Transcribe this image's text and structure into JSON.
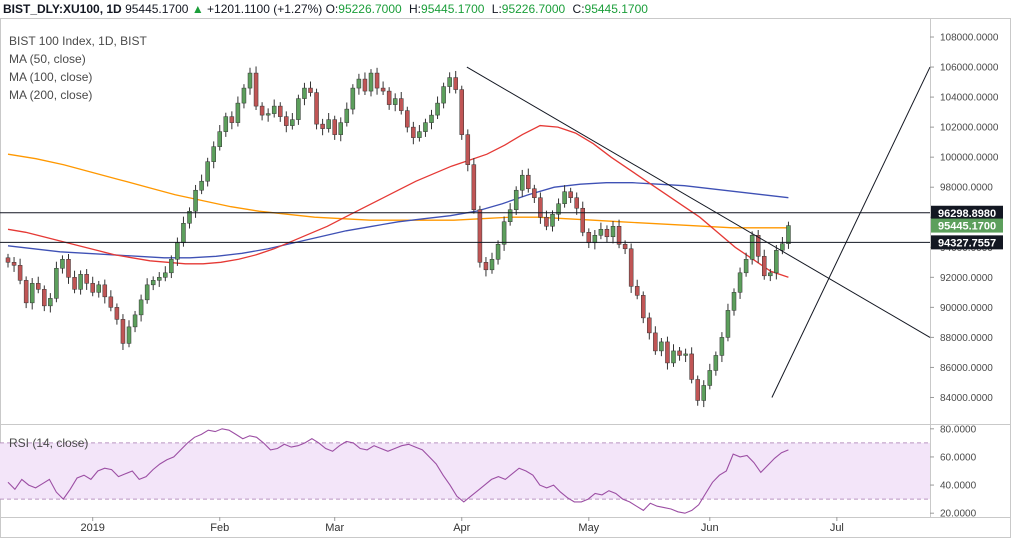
{
  "header": {
    "symbol": "BIST_DLY:XU100, 1D",
    "last": "95445.1700",
    "arrow": "▲",
    "change": "+1201.1100 (+1.27%)",
    "o_label": "O:",
    "o_value": "95226.7000",
    "h_label": "H:",
    "h_value": "95445.1700",
    "l_label": "L:",
    "l_value": "95226.7000",
    "c_label": "C:",
    "c_value": "95445.1700"
  },
  "legend": {
    "title": "BIST 100 Index, 1D, BIST",
    "ma50": "MA (50, close)",
    "ma100": "MA (100, close)",
    "ma200": "MA (200, close)",
    "rsi": "RSI (14, close)"
  },
  "colors": {
    "up": "#5c9f5c",
    "down": "#c05555",
    "ma50": "#e53935",
    "ma100": "#3f51b5",
    "ma200": "#ff9800",
    "rsi_line": "#9c4fa4",
    "rsi_band": "#f3e5f9",
    "hline": "#131722",
    "trend": "#131722"
  },
  "chart_data": [
    {
      "type": "candlestick",
      "x_labels": [
        "2019",
        "Feb",
        "Mar",
        "Apr",
        "May",
        "Jun",
        "Jul"
      ],
      "y_ticks": [
        84000,
        86000,
        88000,
        90000,
        92000,
        94000,
        96000,
        98000,
        100000,
        102000,
        104000,
        106000,
        108000
      ],
      "y_tick_labels": [
        "84000.0000",
        "86000.0000",
        "88000.0000",
        "90000.0000",
        "92000.0000",
        "94000.0000",
        "96000.0000",
        "98000.0000",
        "100000.0000",
        "102000.0000",
        "104000.0000",
        "106000.0000",
        "108000.0000"
      ],
      "ylim": [
        82500,
        109000
      ],
      "price_labels": [
        {
          "value": 96298.898,
          "text": "96298.8980",
          "style": "dark"
        },
        {
          "value": 95445.17,
          "text": "95445.1700",
          "style": "green"
        },
        {
          "value": 94327.7557,
          "text": "94327.7557",
          "style": "dark"
        }
      ],
      "horizontal_lines": [
        96298.898,
        94327.7557
      ],
      "closes": [
        93000,
        92800,
        91800,
        90300,
        91600,
        91200,
        90100,
        90600,
        92600,
        93200,
        92000,
        91200,
        92200,
        91600,
        91000,
        91500,
        90700,
        90000,
        89200,
        87600,
        88700,
        89500,
        90500,
        91500,
        91800,
        92000,
        92300,
        93200,
        94300,
        95600,
        96400,
        97800,
        98400,
        99700,
        100700,
        101700,
        102700,
        102300,
        103600,
        104600,
        105600,
        103400,
        102800,
        102900,
        103400,
        102700,
        102100,
        102500,
        103900,
        104600,
        104300,
        102200,
        101900,
        102500,
        101500,
        102300,
        103200,
        104600,
        105200,
        104400,
        105600,
        104600,
        104400,
        103500,
        103900,
        103100,
        102000,
        101300,
        101700,
        102300,
        102800,
        103600,
        104700,
        105300,
        104500,
        101500,
        99500,
        96500,
        93000,
        92500,
        93200,
        94200,
        95700,
        96500,
        97800,
        98800,
        97900,
        97300,
        96000,
        95400,
        96200,
        96900,
        97700,
        97300,
        96600,
        95000,
        94300,
        94800,
        95200,
        94700,
        95400,
        94200,
        93900,
        91400,
        90800,
        89300,
        88300,
        87100,
        87700,
        86300,
        87100,
        86800,
        86900,
        85200,
        83800,
        84800,
        85800,
        86800,
        88000,
        89800,
        91000,
        92300,
        93200,
        94800,
        93400,
        92100,
        92300,
        93800,
        94244,
        95445
      ],
      "ma50": [
        95200,
        95000,
        94700,
        94400,
        94100,
        93800,
        93500,
        93300,
        93100,
        93000,
        92900,
        92900,
        93000,
        93200,
        93500,
        93900,
        94400,
        94900,
        95400,
        96000,
        96600,
        97200,
        97800,
        98400,
        98900,
        99400,
        99800,
        100200,
        100800,
        101500,
        102100,
        102000,
        101600,
        100900,
        100000,
        99200,
        98400,
        97600,
        96800,
        96000,
        95000,
        94000,
        93200,
        92400,
        92000
      ],
      "ma100": [
        94100,
        93900,
        93700,
        93600,
        93500,
        93400,
        93300,
        93300,
        93400,
        93600,
        93900,
        94300,
        94700,
        95100,
        95400,
        95700,
        95900,
        96100,
        96400,
        96900,
        97500,
        98000,
        98200,
        98300,
        98300,
        98200,
        98100,
        97900,
        97700,
        97500,
        97300
      ],
      "ma200": [
        100200,
        99900,
        99500,
        99000,
        98500,
        98000,
        97500,
        97100,
        96700,
        96400,
        96200,
        96000,
        95900,
        95800,
        95800,
        95800,
        95800,
        95900,
        96000,
        96000,
        95900,
        95800,
        95700,
        95600,
        95500,
        95400,
        95300,
        95300,
        95300
      ],
      "trend_lines": [
        {
          "from": [
            0.502,
            106000
          ],
          "to": [
            1.0,
            88000
          ]
        },
        {
          "from": [
            0.83,
            84000
          ],
          "to": [
            1.0,
            106000
          ]
        }
      ]
    },
    {
      "type": "line",
      "name": "RSI (14, close)",
      "y_ticks": [
        20,
        40,
        60,
        80
      ],
      "y_tick_labels": [
        "20.0000",
        "40.0000",
        "60.0000",
        "80.0000"
      ],
      "ylim": [
        18,
        82
      ],
      "band": [
        30,
        70
      ],
      "values": [
        42,
        37,
        44,
        40,
        38,
        41,
        44,
        35,
        30,
        37,
        45,
        47,
        44,
        50,
        52,
        51,
        46,
        48,
        50,
        44,
        46,
        51,
        55,
        58,
        60,
        65,
        70,
        74,
        76,
        79,
        78,
        80,
        79,
        76,
        73,
        75,
        74,
        70,
        65,
        66,
        69,
        67,
        68,
        70,
        73,
        70,
        66,
        64,
        68,
        71,
        70,
        66,
        65,
        68,
        66,
        64,
        66,
        68,
        69,
        67,
        65,
        60,
        55,
        47,
        40,
        32,
        28,
        32,
        36,
        40,
        44,
        46,
        44,
        48,
        52,
        50,
        47,
        40,
        38,
        40,
        35,
        31,
        28,
        28,
        30,
        34,
        33,
        36,
        34,
        30,
        28,
        25,
        22,
        27,
        25,
        24,
        23,
        21,
        20,
        22,
        26,
        34,
        42,
        47,
        50,
        62,
        60,
        61,
        56,
        49,
        54,
        59,
        63,
        65
      ]
    }
  ]
}
